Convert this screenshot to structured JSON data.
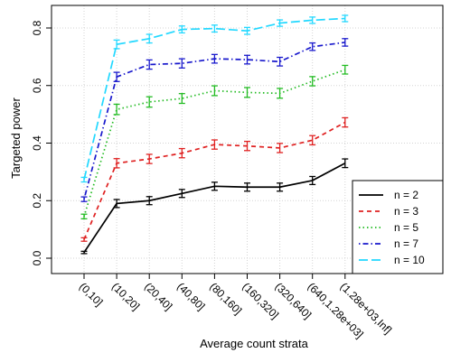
{
  "chart_data": {
    "type": "line",
    "xlabel": "Average count strata",
    "ylabel": "Targeted power",
    "categories": [
      "(0,10]",
      "(10,20]",
      "(20,40]",
      "(40,80]",
      "(80,160]",
      "(160,320]",
      "(320,640]",
      "(640,1.28e+03]",
      "(1.28e+03,Inf]"
    ],
    "ylim": [
      0,
      0.87
    ],
    "yticks": [
      "0.0",
      "0.2",
      "0.4",
      "0.6",
      "0.8"
    ],
    "grid": true,
    "legend_position": "bottom-right",
    "error_bars": true,
    "series": [
      {
        "name": "n = 2",
        "color": "#000000",
        "dash": "solid",
        "values": [
          0.02,
          0.19,
          0.2,
          0.225,
          0.25,
          0.247,
          0.247,
          0.27,
          0.33
        ],
        "err": [
          0.004,
          0.014,
          0.014,
          0.014,
          0.014,
          0.014,
          0.014,
          0.014,
          0.015
        ]
      },
      {
        "name": "n = 3",
        "color": "#df2020",
        "dash": "dashed",
        "values": [
          0.065,
          0.33,
          0.345,
          0.365,
          0.395,
          0.39,
          0.383,
          0.41,
          0.472
        ],
        "err": [
          0.006,
          0.016,
          0.016,
          0.016,
          0.016,
          0.016,
          0.016,
          0.016,
          0.016
        ]
      },
      {
        "name": "n = 5",
        "color": "#22bb22",
        "dash": "dotted",
        "values": [
          0.145,
          0.517,
          0.543,
          0.555,
          0.582,
          0.576,
          0.573,
          0.615,
          0.655
        ],
        "err": [
          0.008,
          0.018,
          0.018,
          0.017,
          0.017,
          0.017,
          0.017,
          0.016,
          0.015
        ]
      },
      {
        "name": "n = 7",
        "color": "#1818cc",
        "dash": "dotdash",
        "values": [
          0.205,
          0.63,
          0.673,
          0.677,
          0.693,
          0.69,
          0.683,
          0.735,
          0.75
        ],
        "err": [
          0.008,
          0.016,
          0.016,
          0.016,
          0.015,
          0.015,
          0.015,
          0.013,
          0.013
        ]
      },
      {
        "name": "n = 10",
        "color": "#22d8ff",
        "dash": "longdash",
        "values": [
          0.273,
          0.743,
          0.763,
          0.795,
          0.798,
          0.79,
          0.817,
          0.827,
          0.833
        ],
        "err": [
          0.008,
          0.015,
          0.015,
          0.012,
          0.012,
          0.012,
          0.011,
          0.011,
          0.011
        ]
      }
    ]
  }
}
